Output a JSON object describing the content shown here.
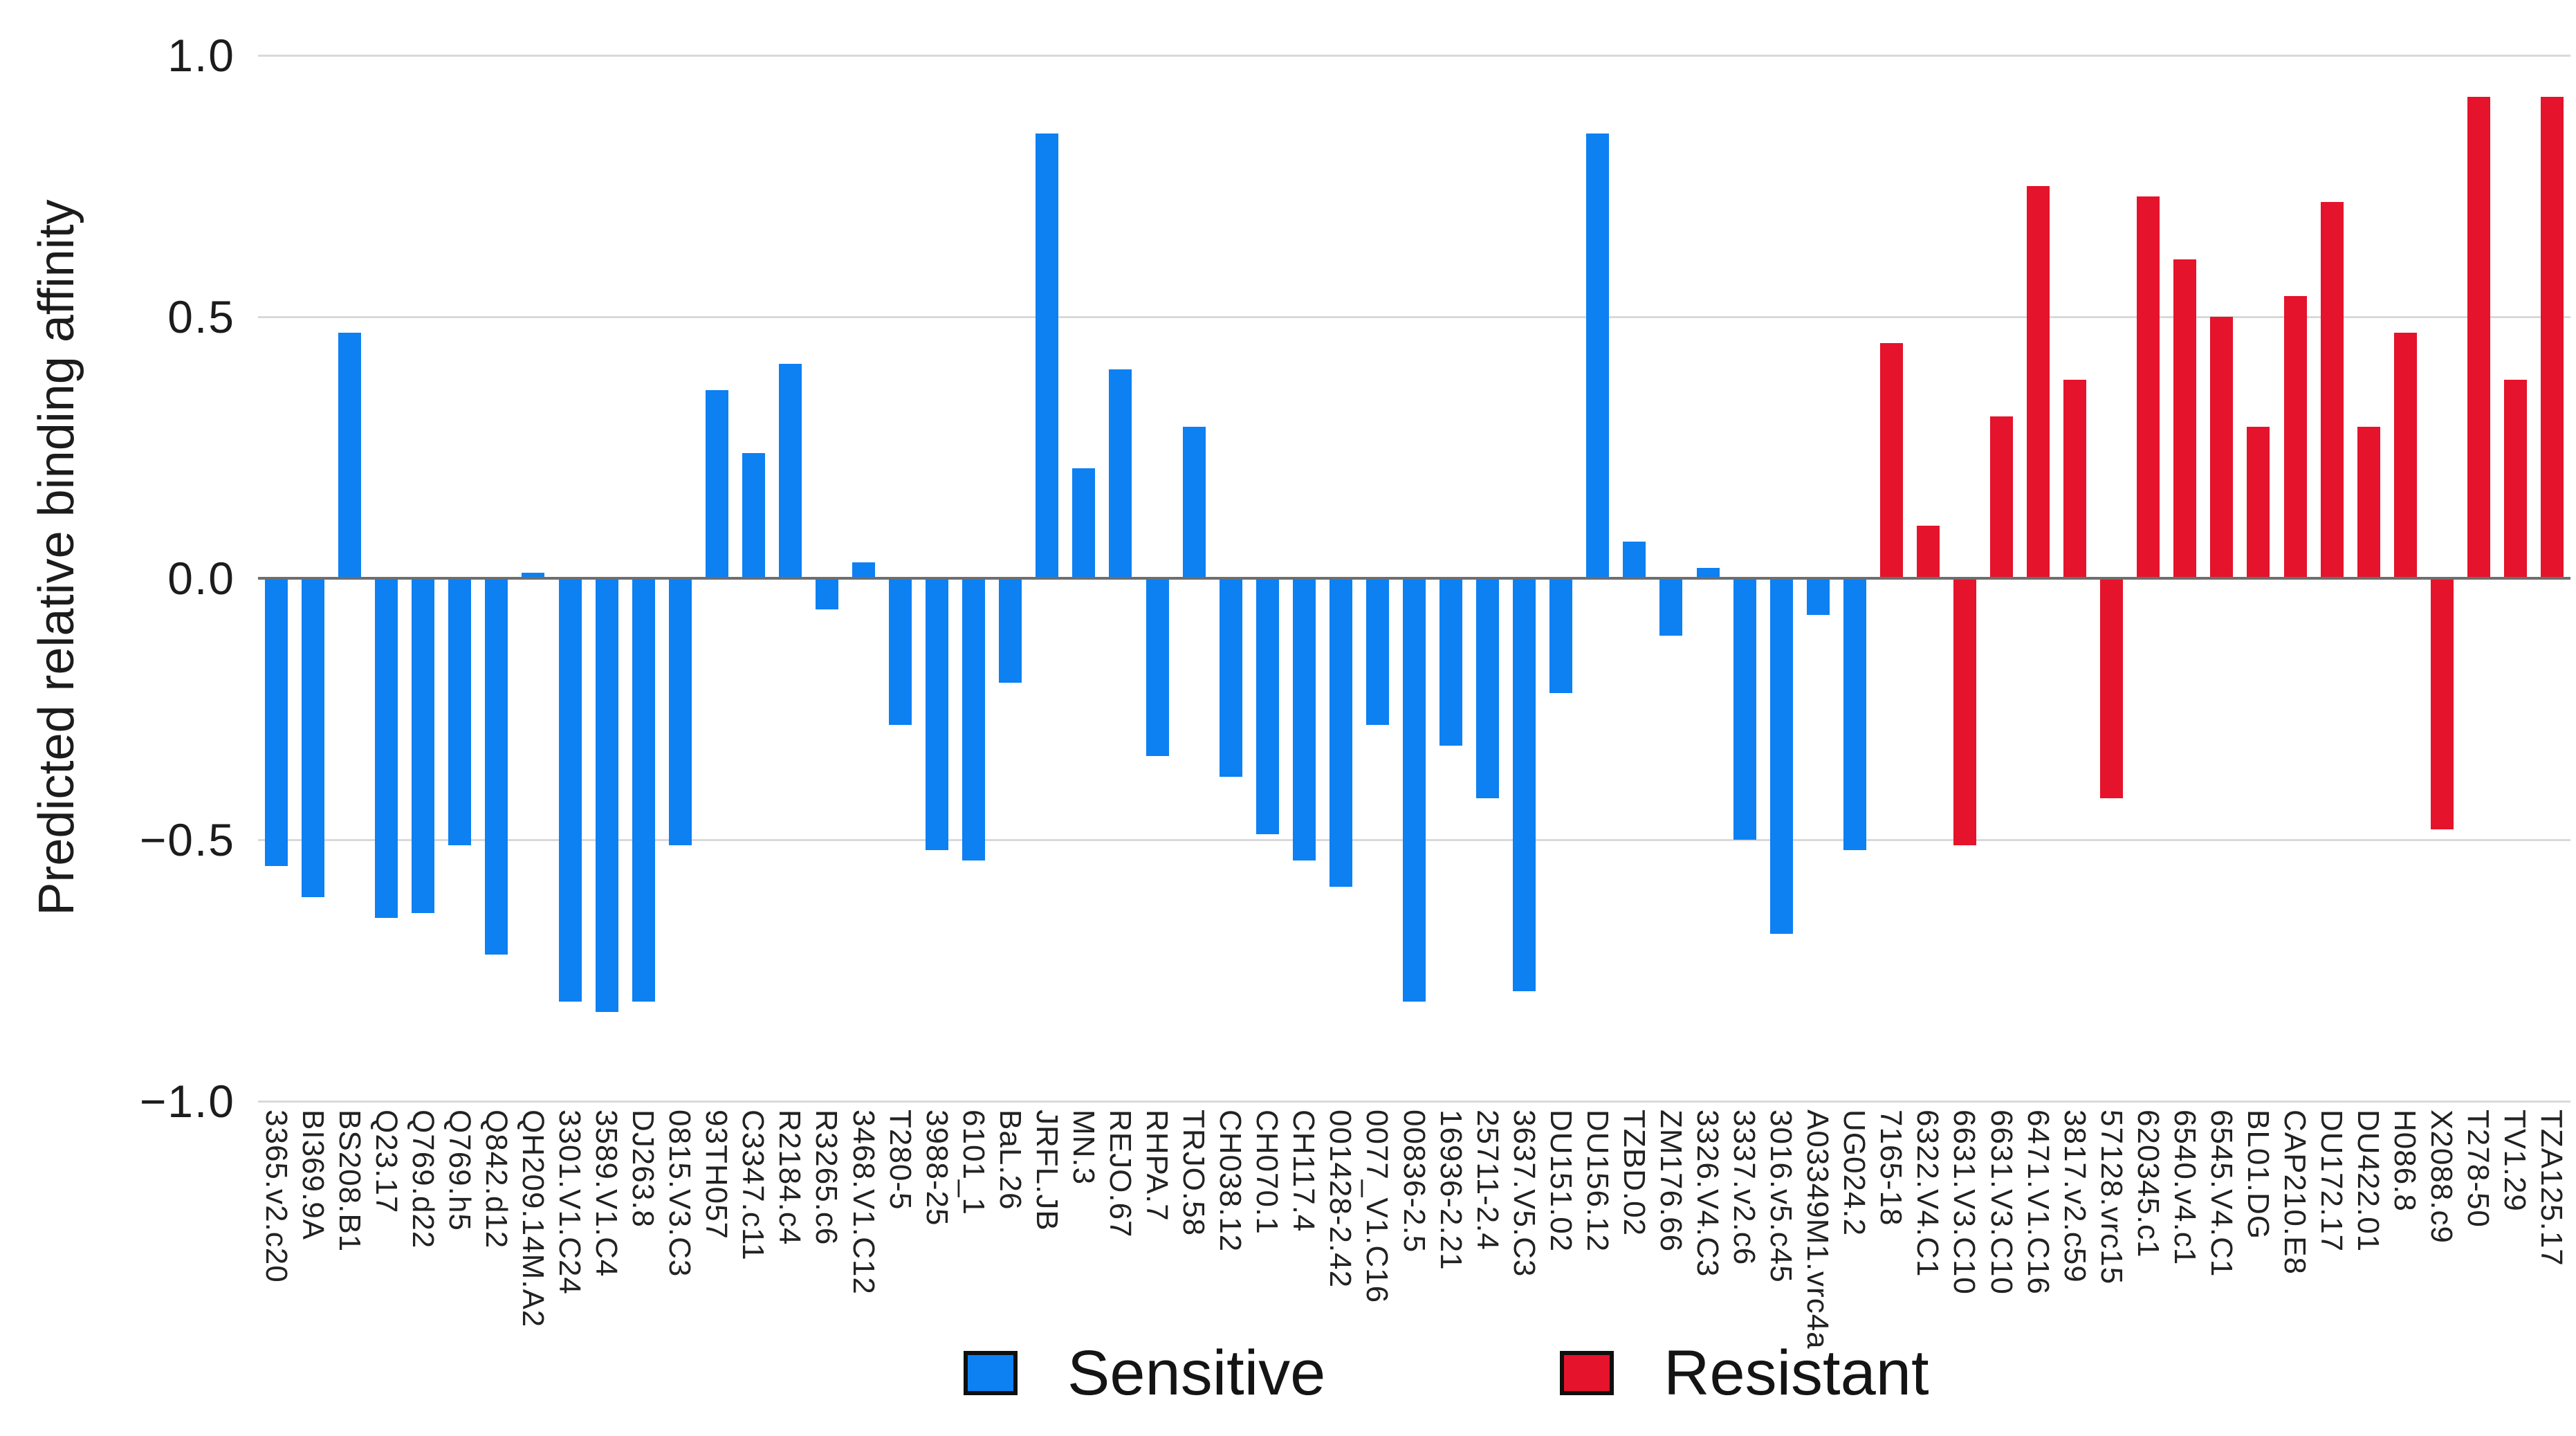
{
  "chart_data": {
    "type": "bar",
    "title": "",
    "xlabel": "",
    "ylabel": "Predicted relative binding affinity",
    "ylim": [
      -1.0,
      1.0
    ],
    "yticks": [
      1.0,
      0.5,
      0.0,
      -0.5,
      -1.0
    ],
    "ytick_labels": [
      "1.0",
      "0.5",
      "0.0",
      "−0.5",
      "−1.0"
    ],
    "grid": true,
    "legend_position": "bottom",
    "series": [
      {
        "name": "Sensitive",
        "color": "#0d80f2",
        "categories": [
          "3365.v2.c20",
          "BI369.9A",
          "BS208.B1",
          "Q23.17",
          "Q769.d22",
          "Q769.h5",
          "Q842.d12",
          "QH209.14M.A2",
          "3301.V1.C24",
          "3589.V1.C4",
          "DJ263.8",
          "0815.V3.C3",
          "93TH057",
          "C3347.c11",
          "R2184.c4",
          "R3265.c6",
          "3468.V1.C12",
          "T280-5",
          "3988-25",
          "6101_1",
          "BaL.26",
          "JRFL.JB",
          "MN.3",
          "REJO.67",
          "RHPA.7",
          "TRJO.58",
          "CH038.12",
          "CH070.1",
          "CH117.4",
          "001428-2.42",
          "0077_V1.C16",
          "00836-2.5",
          "16936-2.21",
          "25711-2.4",
          "3637.V5.C3",
          "DU151.02",
          "DU156.12",
          "TZBD.02",
          "ZM176.66",
          "3326.V4.C3",
          "3337.v2.c6",
          "3016.v5.c45",
          "A03349M1.vrc4a",
          "UG024.2"
        ],
        "values": [
          -0.55,
          -0.61,
          0.47,
          -0.65,
          -0.64,
          -0.51,
          -0.72,
          0.01,
          -0.81,
          -0.83,
          -0.81,
          -0.51,
          0.36,
          0.24,
          0.41,
          -0.06,
          0.03,
          -0.28,
          -0.52,
          -0.54,
          -0.2,
          0.85,
          0.21,
          0.4,
          -0.34,
          0.29,
          -0.38,
          -0.49,
          -0.54,
          -0.59,
          -0.28,
          -0.81,
          -0.32,
          -0.42,
          -0.79,
          -0.22,
          0.85,
          0.07,
          -0.11,
          0.02,
          -0.5,
          -0.68,
          -0.07,
          -0.52
        ]
      },
      {
        "name": "Resistant",
        "color": "#e5132b",
        "categories": [
          "7165-18",
          "6322.V4.C1",
          "6631.V3.C10",
          "6631.V3.C10",
          "6471.V1.C16",
          "3817.v2.c59",
          "57128.vrc15",
          "620345.c1",
          "6540.v4.c1",
          "6545.V4.C1",
          "BL01.DG",
          "CAP210.E8",
          "DU172.17",
          "DU422.01",
          "H086.8",
          "X2088.c9",
          "T278-50",
          "TV1.29",
          "TZA125.17"
        ],
        "values": [
          0.45,
          0.1,
          -0.51,
          0.31,
          0.75,
          0.38,
          -0.42,
          0.73,
          0.61,
          0.5,
          0.29,
          0.54,
          0.72,
          0.29,
          0.47,
          -0.48,
          0.92,
          0.38,
          0.92
        ]
      }
    ],
    "legend": [
      {
        "label": "Sensitive",
        "color": "#0d80f2"
      },
      {
        "label": "Resistant",
        "color": "#e5132b"
      }
    ]
  },
  "colors": {
    "sensitive": "#0d80f2",
    "resistant": "#e5132b",
    "gridline": "#d9d9d9",
    "zero_line": "#6e6e6e",
    "text": "#1c1c1c",
    "background": "#ffffff"
  }
}
